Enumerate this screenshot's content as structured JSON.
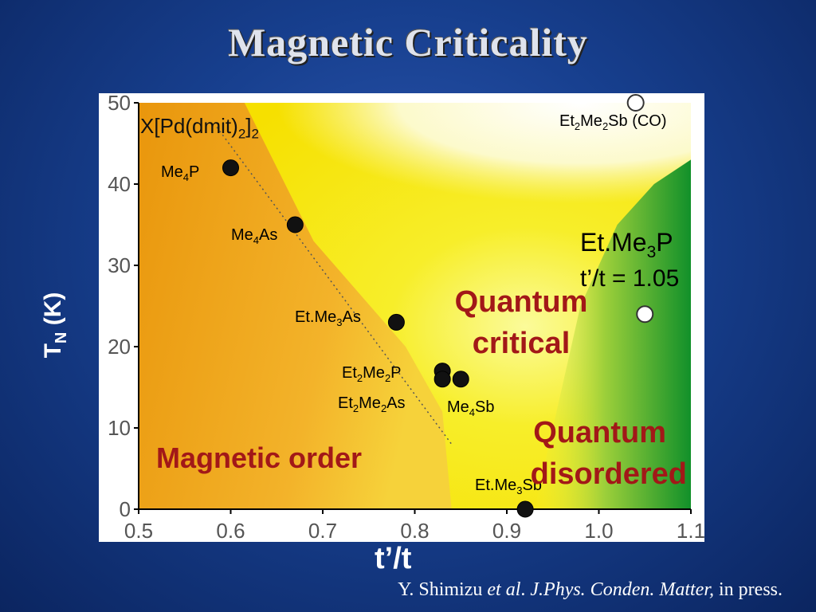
{
  "slide": {
    "title": "Magnetic Criticality",
    "citation": {
      "authors": "Y. Shimizu",
      "etal": "et al",
      "dot": ".",
      "journal": "J.Phys. Conden. Matter,",
      "status": "in press."
    }
  },
  "chart_data": {
    "type": "scatter",
    "title": "X[Pd(dmit)2]2",
    "xlabel": "t’/t",
    "ylabel": "TN (K)",
    "xlim": [
      0.5,
      1.1
    ],
    "ylim": [
      0,
      50
    ],
    "x_ticks": [
      "0.5",
      "0.6",
      "0.7",
      "0.8",
      "0.9",
      "1.0",
      "1.1"
    ],
    "y_ticks": [
      "0",
      "10",
      "20",
      "30",
      "40",
      "50"
    ],
    "grid": false,
    "colors": {
      "ordered": "#e8960f",
      "critical": "#f8f000",
      "disordered": "#1e9a2e",
      "marker": "#111111",
      "region_text": "#a21818"
    },
    "points": [
      {
        "name": "Me4P",
        "x": 0.6,
        "y": 42,
        "filled": true,
        "label": "Me4P"
      },
      {
        "name": "Me4As",
        "x": 0.67,
        "y": 35,
        "filled": true,
        "label": "Me4As"
      },
      {
        "name": "EtMe3As",
        "x": 0.78,
        "y": 23,
        "filled": true,
        "label": "Et.Me3As"
      },
      {
        "name": "Et2Me2P",
        "x": 0.83,
        "y": 17,
        "filled": true,
        "label": "Et2Me2P"
      },
      {
        "name": "Et2Me2As",
        "x": 0.83,
        "y": 16,
        "filled": true,
        "label": "Et2Me2As"
      },
      {
        "name": "Me4Sb",
        "x": 0.85,
        "y": 16,
        "filled": true,
        "label": "Me4Sb"
      },
      {
        "name": "EtMe3Sb",
        "x": 0.92,
        "y": 0,
        "filled": true,
        "label": "Et.Me3Sb"
      },
      {
        "name": "EtMe3P",
        "x": 1.05,
        "y": 24,
        "filled": false,
        "label": "Et.Me3P"
      },
      {
        "name": "Et2Me2Sb",
        "x": 1.04,
        "y": 50,
        "filled": false,
        "label": "Et2Me2Sb (CO)"
      }
    ],
    "annotations": {
      "etme3p_ratio": "t’/t = 1.05",
      "quantum_critical": [
        "Quantum",
        "critical"
      ],
      "magnetic_order": "Magnetic order",
      "quantum_disordered": [
        "Quantum",
        "disordered"
      ]
    }
  }
}
